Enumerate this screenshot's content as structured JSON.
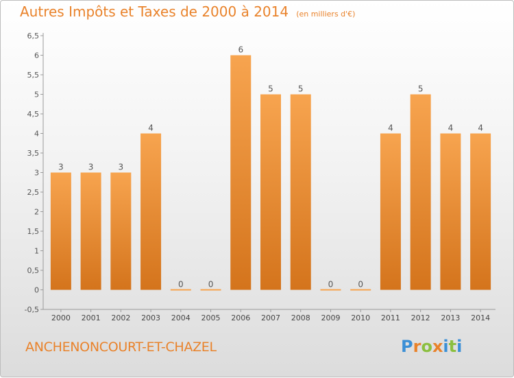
{
  "header": {
    "title": "Autres Impôts et Taxes de 2000 à 2014",
    "subtitle": "(en milliers d'€)"
  },
  "footer": {
    "city": "ANCHENONCOURT-ET-CHAZEL",
    "logo_text": "Proxiti"
  },
  "colors": {
    "accent": "#e9822a",
    "bar_light": "#f7a44f",
    "bar_dark": "#d4741c",
    "logo_letters": [
      "#3a8fd6",
      "#e9822a",
      "#8bbf3f",
      "#e9822a",
      "#3a8fd6",
      "#8bbf3f",
      "#3a8fd6"
    ]
  },
  "chart_data": {
    "type": "bar",
    "categories": [
      "2000",
      "2001",
      "2002",
      "2003",
      "2004",
      "2005",
      "2006",
      "2007",
      "2008",
      "2009",
      "2010",
      "2011",
      "2012",
      "2013",
      "2014"
    ],
    "values": [
      3,
      3,
      3,
      4,
      0,
      0,
      6,
      5,
      5,
      0,
      0,
      4,
      5,
      4,
      4
    ],
    "data_labels": [
      "3",
      "3",
      "3",
      "4",
      "0",
      "0",
      "6",
      "5",
      "5",
      "0",
      "0",
      "4",
      "5",
      "4",
      "4"
    ],
    "ylim": [
      -0.5,
      6.5
    ],
    "yticks": [
      "-0,5",
      "0",
      "0,5",
      "1",
      "1,5",
      "2",
      "2,5",
      "3",
      "3,5",
      "4",
      "4,5",
      "5",
      "5,5",
      "6",
      "6,5"
    ],
    "ytick_values": [
      -0.5,
      0,
      0.5,
      1,
      1.5,
      2,
      2.5,
      3,
      3.5,
      4,
      4.5,
      5,
      5.5,
      6,
      6.5
    ],
    "grid": false,
    "legend": "none"
  }
}
